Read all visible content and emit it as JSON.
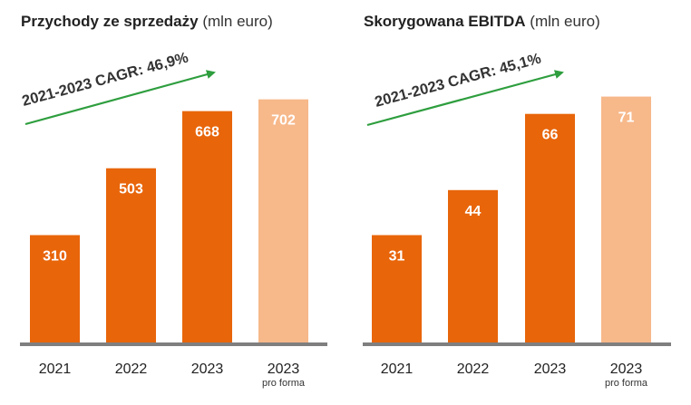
{
  "chart_data": [
    {
      "type": "bar",
      "title": "Przychody ze sprzedaży",
      "unit": "(mln euro)",
      "annotation": "2021-2023 CAGR: 46,9%",
      "categories": [
        "2021",
        "2022",
        "2023",
        "2023"
      ],
      "category_notes": [
        "",
        "",
        "",
        "pro forma"
      ],
      "values": [
        310,
        503,
        668,
        702
      ],
      "bar_colors": [
        "#E8650A",
        "#E8650A",
        "#E8650A",
        "#F7B88A"
      ],
      "ylim": [
        0,
        790
      ],
      "grid": false,
      "legend": "none"
    },
    {
      "type": "bar",
      "title": "Skorygowana EBITDA",
      "unit": "(mln euro)",
      "annotation": "2021-2023 CAGR: 45,1%",
      "categories": [
        "2021",
        "2022",
        "2023",
        "2023"
      ],
      "category_notes": [
        "",
        "",
        "",
        "pro forma"
      ],
      "values": [
        31,
        44,
        66,
        71
      ],
      "bar_colors": [
        "#E8650A",
        "#E8650A",
        "#E8650A",
        "#F7B88A"
      ],
      "ylim": [
        0,
        79
      ],
      "grid": false,
      "legend": "none"
    }
  ],
  "colors": {
    "bar": "#E8650A",
    "bar_pro_forma": "#F7B88A",
    "arrow": "#2E9E3E",
    "baseline": "#7F7F7F"
  }
}
